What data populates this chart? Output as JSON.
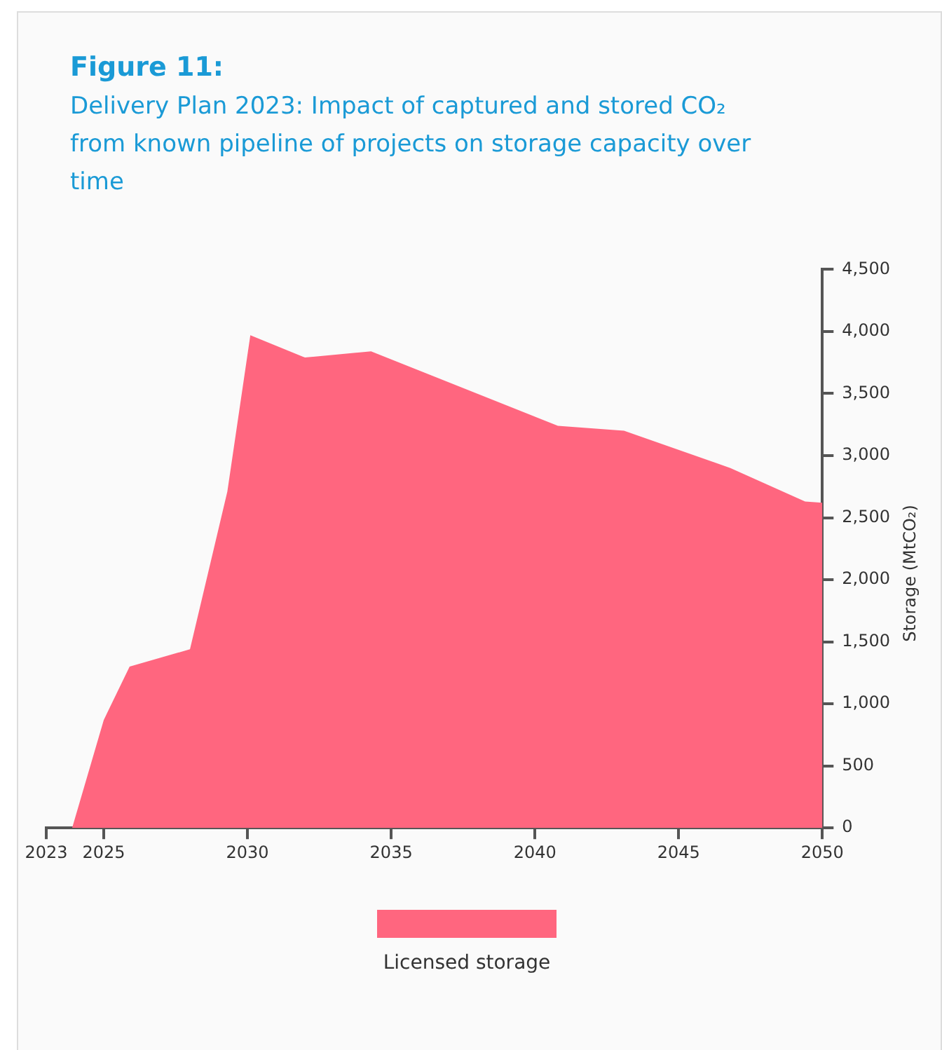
{
  "chart_data": {
    "type": "area",
    "title": "Figure 11:",
    "subtitle": "Delivery Plan 2023: Impact of captured and stored CO₂ from known pipeline of projects on storage capacity over time",
    "ylabel": "Storage (MtCO₂)",
    "series": [
      {
        "name": "Licensed storage",
        "color": "#ff667f",
        "x": [
          2023.9,
          2025,
          2025.9,
          2028,
          2029.3,
          2030.1,
          2032,
          2034.3,
          2040.8,
          2043.1,
          2046.8,
          2049.4,
          2050
        ],
        "values": [
          0,
          870,
          1300,
          1440,
          2710,
          3970,
          3790,
          3840,
          3240,
          3200,
          2900,
          2630,
          2620
        ]
      }
    ],
    "xlim": [
      2023,
      2050
    ],
    "xticks": [
      2023,
      2025,
      2030,
      2035,
      2040,
      2045,
      2050
    ],
    "ylim": [
      0,
      4500
    ],
    "yticks": [
      0,
      500,
      {
        "value": 1000,
        "label": "1,000"
      },
      {
        "value": 1500,
        "label": "1,500"
      },
      {
        "value": 2000,
        "label": "2,000"
      },
      {
        "value": 2500,
        "label": "2,500"
      },
      {
        "value": 3000,
        "label": "3,000"
      },
      {
        "value": 3500,
        "label": "3,500"
      },
      {
        "value": 4000,
        "label": "4,000"
      },
      {
        "value": 4500,
        "label": "4,500"
      }
    ],
    "grid": false,
    "legend": "bottom"
  }
}
